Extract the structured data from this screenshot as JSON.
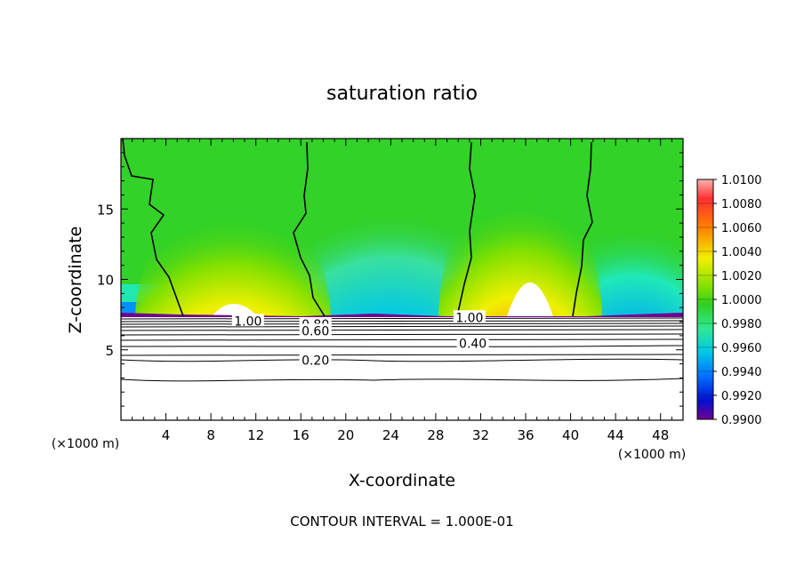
{
  "chart_data": {
    "type": "heatmap",
    "title": "saturation ratio",
    "xlabel": "X-coordinate",
    "ylabel": "Z-coordinate",
    "x_unit_left": "(×1000 m)",
    "x_unit_right": "(×1000 m)",
    "footer": "CONTOUR INTERVAL = 1.000E-01",
    "xlim": [
      0,
      50
    ],
    "ylim": [
      0,
      20
    ],
    "xticks": [
      4,
      8,
      12,
      16,
      20,
      24,
      28,
      32,
      36,
      40,
      44,
      48
    ],
    "yticks": [
      5,
      10,
      15
    ],
    "colorbar": {
      "range": [
        0.99,
        1.01
      ],
      "labels": [
        "1.0100",
        "1.0080",
        "1.0060",
        "1.0040",
        "1.0020",
        "1.0000",
        "0.9980",
        "0.9960",
        "0.9940",
        "0.9920",
        "0.9900"
      ],
      "colors": [
        "#ffffff",
        "#ff9090",
        "#ff5a5a",
        "#ff1a1a",
        "#ff5000",
        "#ff9a00",
        "#ffd400",
        "#f0f000",
        "#b8f000",
        "#78e000",
        "#30d020",
        "#38e070",
        "#20f0b0",
        "#00c8e8",
        "#0090ff",
        "#0050f0",
        "#0010d0",
        "#3000a8",
        "#700090",
        "#ffffff"
      ]
    },
    "contour_labels": [
      {
        "text": "1.00",
        "x": 11.3,
        "z": 7.05
      },
      {
        "text": "0.80",
        "x": 17.3,
        "z": 6.8
      },
      {
        "text": "0.60",
        "x": 17.3,
        "z": 6.35
      },
      {
        "text": "1.00",
        "x": 31.0,
        "z": 7.3
      },
      {
        "text": "0.40",
        "x": 31.3,
        "z": 5.45
      },
      {
        "text": "0.20",
        "x": 17.3,
        "z": 4.25
      }
    ]
  }
}
